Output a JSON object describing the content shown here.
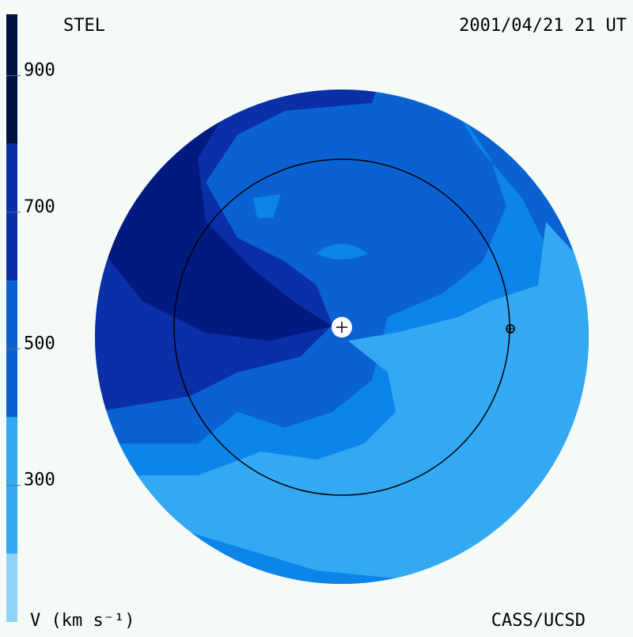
{
  "chart_data": {
    "type": "colormap",
    "title": "STEL",
    "subtitle": "2001/04/21 21 UT",
    "credit": "CASS/UCSD",
    "colorbar": {
      "label": "V (km s⁻¹)",
      "levels": [
        100,
        200,
        400,
        600,
        800,
        990
      ],
      "colors": [
        "#8fd4f8",
        "#33a9f4",
        "#0a62d2",
        "#0a2fa6",
        "#001242"
      ],
      "ylim": [
        100,
        990
      ],
      "yticks": [
        300,
        500,
        700,
        900
      ]
    }
  }
}
